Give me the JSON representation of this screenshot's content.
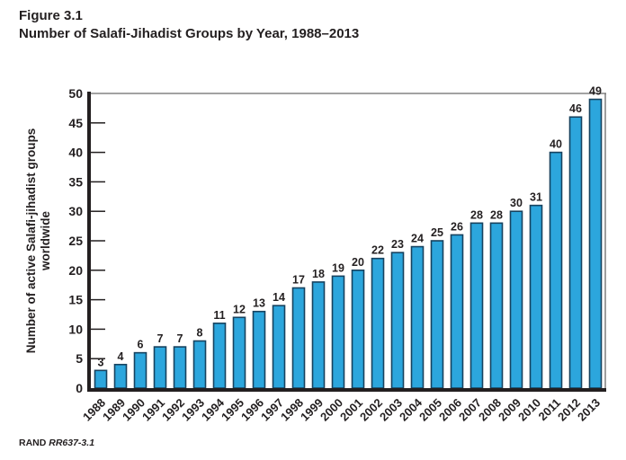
{
  "header": {
    "figure_label": "Figure 3.1",
    "figure_title": "Number of Salafi-Jihadist Groups by Year, 1988–2013"
  },
  "footer": {
    "source_name": "RAND ",
    "source_id": "RR637-3.1"
  },
  "chart_data": {
    "type": "bar",
    "title": "Number of Salafi-Jihadist Groups by Year, 1988–2013",
    "categories": [
      "1988",
      "1989",
      "1990",
      "1991",
      "1992",
      "1993",
      "1994",
      "1995",
      "1996",
      "1997",
      "1998",
      "1999",
      "2000",
      "2001",
      "2002",
      "2003",
      "2004",
      "2005",
      "2006",
      "2007",
      "2008",
      "2009",
      "2010",
      "2011",
      "2012",
      "2013"
    ],
    "values": [
      3,
      4,
      6,
      7,
      7,
      8,
      11,
      12,
      13,
      14,
      17,
      18,
      19,
      20,
      22,
      23,
      24,
      25,
      26,
      28,
      28,
      30,
      31,
      40,
      46,
      49
    ],
    "xlabel": "",
    "ylabel": "Number of active Salafi-jihadist groups worldwide",
    "ylabel_lines": [
      "Number of active Salafi-jihadist groups",
      "worldwide"
    ],
    "ylim": [
      0,
      50
    ],
    "ytick_step": 5,
    "value_labels": true,
    "grid": false,
    "legend": "none",
    "bar_color": "#2ca6dd",
    "bar_outline_color": "#16425f",
    "axis_color": "#231f20",
    "border_color": "#6a6a6a",
    "text_color": "#231f20"
  }
}
